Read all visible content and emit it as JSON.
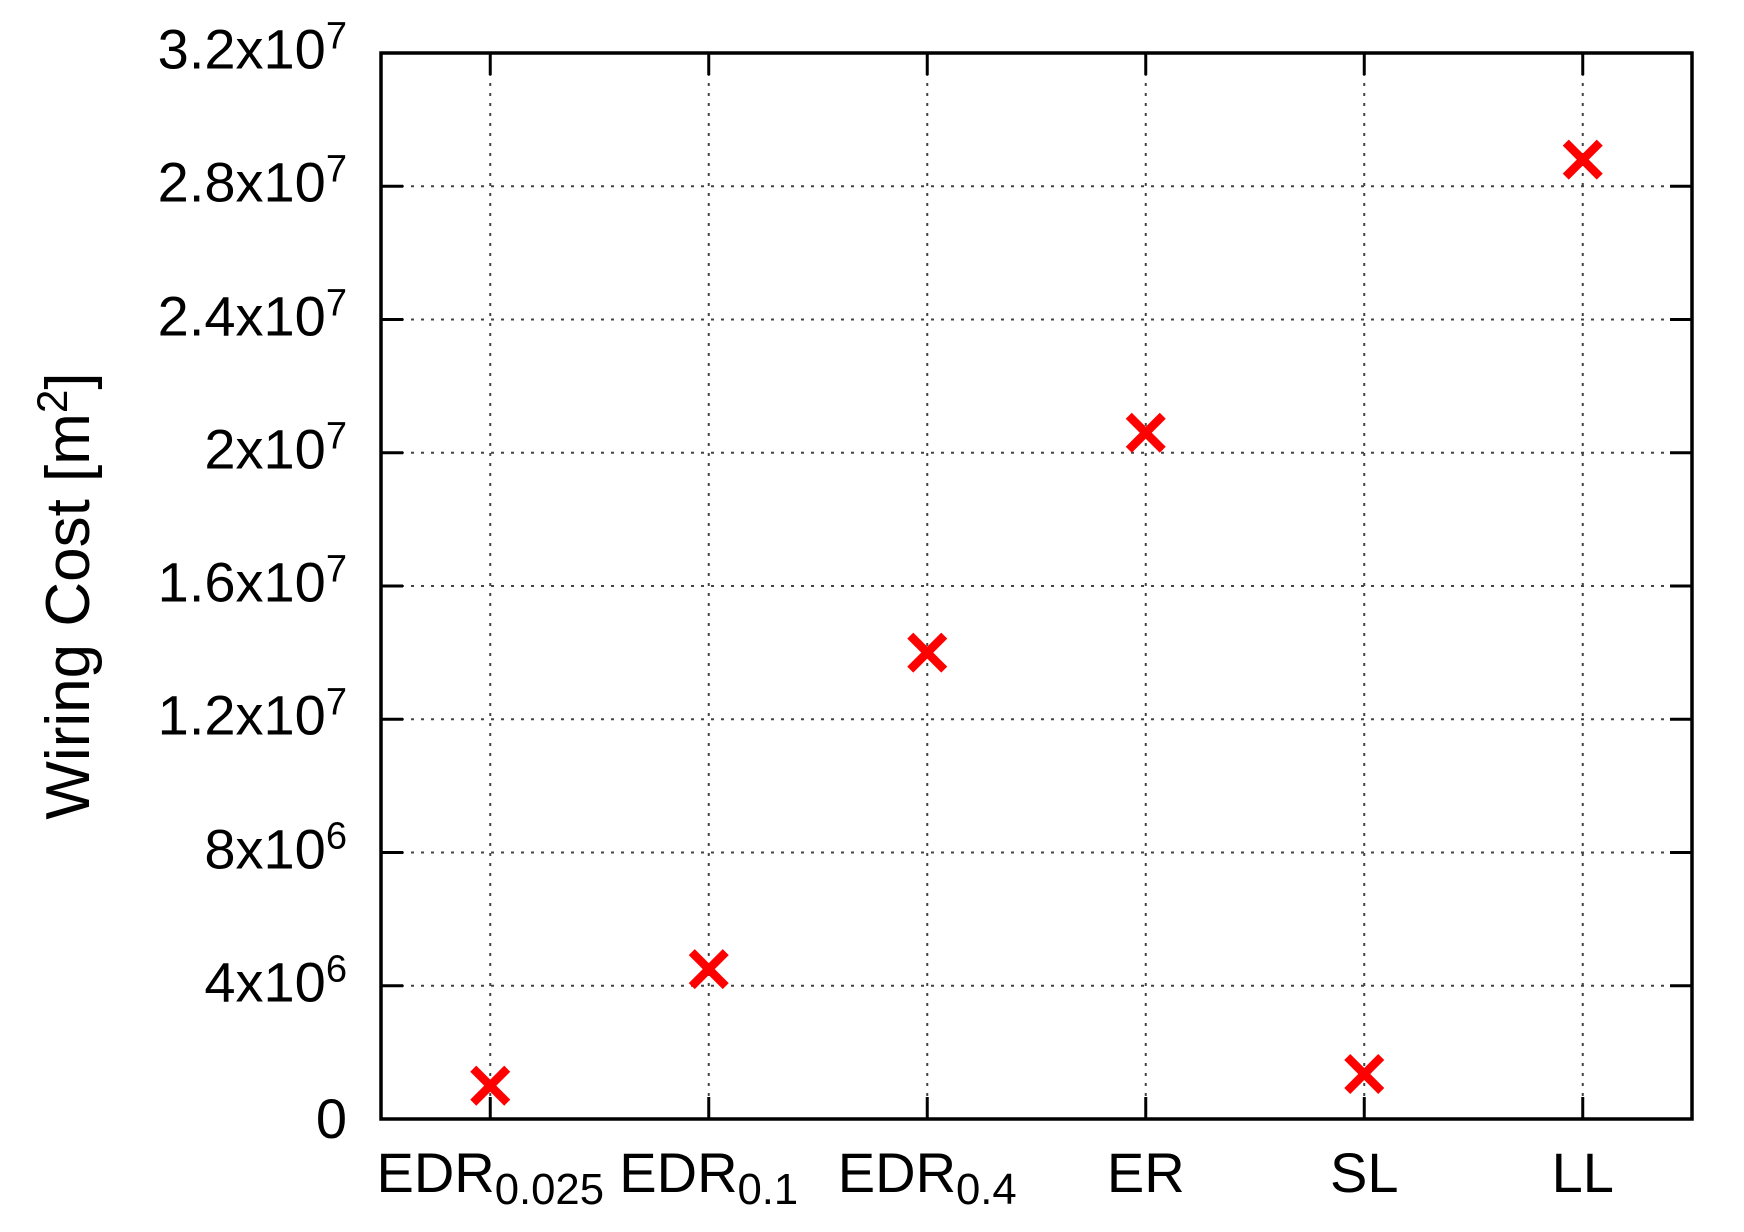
{
  "chart_data": {
    "type": "scatter",
    "title": "",
    "xlabel": "",
    "ylabel": {
      "prefix": "Wiring Cost [m",
      "sup": "2",
      "suffix": "]"
    },
    "categories": [
      {
        "base": "EDR",
        "sub": "0.025"
      },
      {
        "base": "EDR",
        "sub": "0.1"
      },
      {
        "base": "EDR",
        "sub": "0.4"
      },
      {
        "base": "ER",
        "sub": ""
      },
      {
        "base": "SL",
        "sub": ""
      },
      {
        "base": "LL",
        "sub": ""
      }
    ],
    "values": [
      1000000,
      4500000,
      14000000,
      20600000,
      1350000,
      28800000
    ],
    "y_ticks": [
      {
        "value": 0,
        "text": "0",
        "sup": ""
      },
      {
        "value": 4000000,
        "text": "4x10",
        "sup": "6"
      },
      {
        "value": 8000000,
        "text": "8x10",
        "sup": "6"
      },
      {
        "value": 12000000,
        "text": "1.2x10",
        "sup": "7"
      },
      {
        "value": 16000000,
        "text": "1.6x10",
        "sup": "7"
      },
      {
        "value": 20000000,
        "text": "2x10",
        "sup": "7"
      },
      {
        "value": 24000000,
        "text": "2.4x10",
        "sup": "7"
      },
      {
        "value": 28000000,
        "text": "2.8x10",
        "sup": "7"
      },
      {
        "value": 32000000,
        "text": "3.2x10",
        "sup": "7"
      }
    ],
    "ylim": [
      0,
      32000000
    ],
    "grid": true,
    "legend": "none",
    "marker": {
      "shape": "x",
      "color": "#ff0000"
    },
    "colors": {
      "background": "#ffffff",
      "frame": "#000000",
      "grid": "#444444",
      "text": "#000000"
    }
  }
}
